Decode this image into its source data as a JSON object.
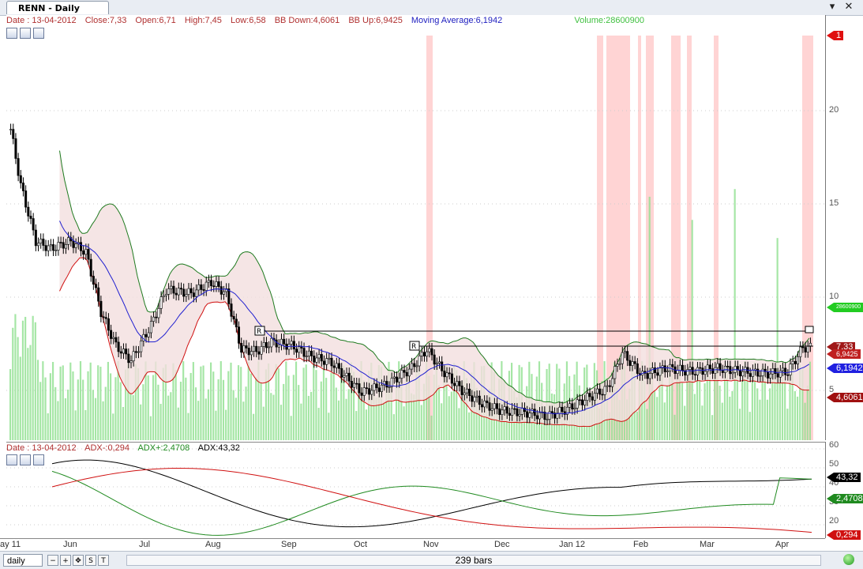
{
  "window": {
    "tab_title": "RENN - Daily",
    "close_glyph": "✕",
    "menu_glyph": "▾"
  },
  "price_pane": {
    "info": {
      "date": "Date : 13-04-2012",
      "close": "Close:7,33",
      "open": "Open:6,71",
      "high": "High:7,45",
      "low": "Low:6,58",
      "bb_down": "BB Down:4,6061",
      "bb_up": "BB Up:6,9425",
      "ma": "Moving Average:6,1942",
      "volume": "Volume:28600900"
    },
    "axis_ticks": [
      "20",
      "15",
      "10",
      "5"
    ],
    "tags": {
      "alert": "1",
      "volume": "28600900",
      "close": "7,33",
      "bb_up": "6,9425",
      "ma": "6,1942",
      "bb_down": "4,6061"
    },
    "markers": [
      "R",
      "R"
    ]
  },
  "adx_pane": {
    "info": {
      "date": "Date : 13-04-2012",
      "adx_minus": "ADX-:0,294",
      "adx_plus": "ADX+:2,4708",
      "adx": "ADX:43,32"
    },
    "axis_ticks": [
      "60",
      "50",
      "40",
      "30",
      "20",
      "10"
    ],
    "tags": {
      "adx": "43,32",
      "adx_plus": "2,4708",
      "adx_minus": "0,294"
    }
  },
  "x_axis": [
    "ay 11",
    "Jun",
    "Jul",
    "Aug",
    "Sep",
    "Oct",
    "Nov",
    "Dec",
    "Jan 12",
    "Feb",
    "Mar",
    "Apr"
  ],
  "status": {
    "interval": "daily",
    "bars": "239 bars",
    "s_label": "S",
    "t_label": "T"
  },
  "colors": {
    "candle": "#000000",
    "bb_up": "#1f7a1f",
    "bb_down": "#d01010",
    "moving_average": "#2020d0",
    "volume": "#8fe08f",
    "band_fill": "#f3dede",
    "highlight": "#ffd4d4",
    "adx": "#000000",
    "adx_plus": "#1f8a1f",
    "adx_minus": "#d01010"
  },
  "icons": [
    "chart-icon",
    "chart-settings-icon",
    "edit-chart-icon",
    "zoom-out-icon",
    "zoom-in-icon",
    "pan-icon",
    "green-status-icon"
  ]
}
